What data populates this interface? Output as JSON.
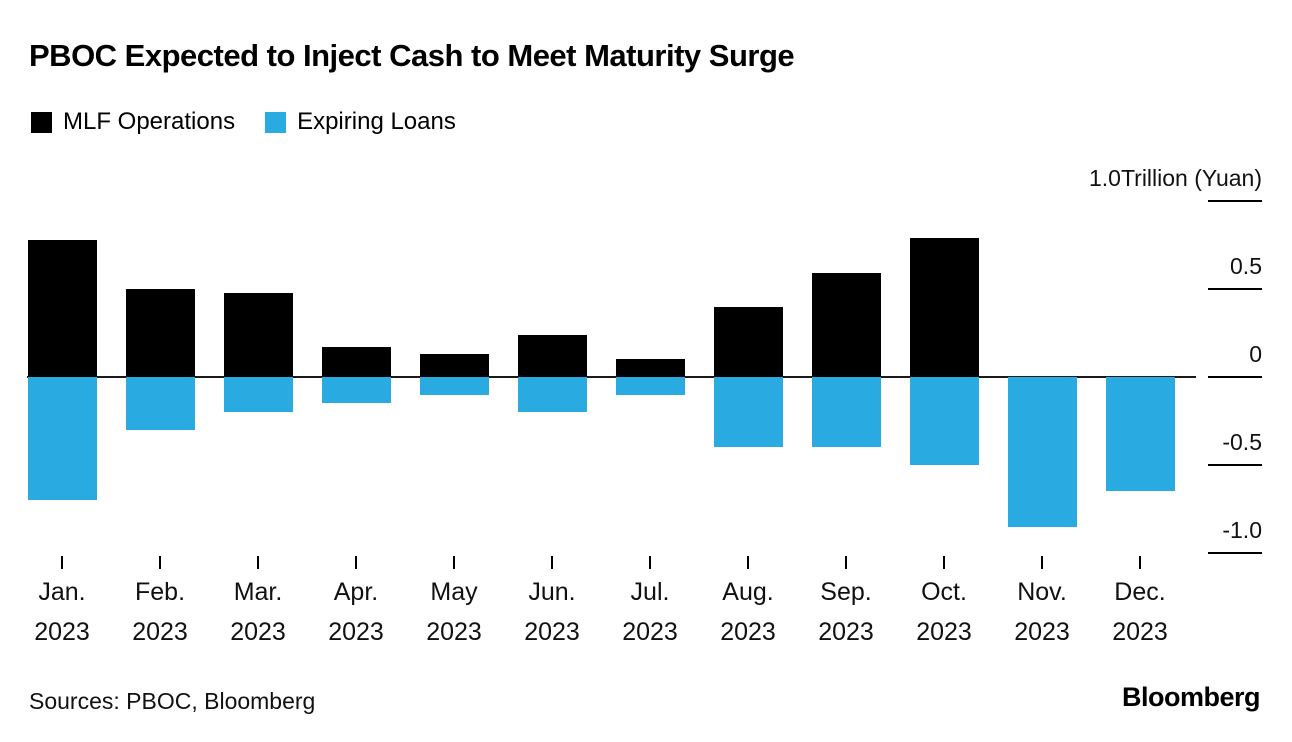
{
  "title": "PBOC Expected to Inject Cash to Meet Maturity Surge",
  "legend": {
    "items": [
      {
        "label": "MLF Operations",
        "color": "#000000"
      },
      {
        "label": "Expiring Loans",
        "color": "#29ABE2"
      }
    ]
  },
  "footer": {
    "sources": "Sources: PBOC, Bloomberg",
    "brand": "Bloomberg"
  },
  "chart_data": {
    "type": "bar",
    "title": "PBOC Expected to Inject Cash to Meet Maturity Surge",
    "categories": [
      "Jan.",
      "Feb.",
      "Mar.",
      "Apr.",
      "May",
      "Jun.",
      "Jul.",
      "Aug.",
      "Sep.",
      "Oct.",
      "Nov.",
      "Dec."
    ],
    "category_year": "2023",
    "series": [
      {
        "name": "MLF Operations",
        "color": "#000000",
        "values": [
          0.78,
          0.5,
          0.48,
          0.17,
          0.13,
          0.24,
          0.1,
          0.4,
          0.59,
          0.79,
          0,
          0
        ]
      },
      {
        "name": "Expiring Loans",
        "color": "#29ABE2",
        "values": [
          -0.7,
          -0.3,
          -0.2,
          -0.15,
          -0.1,
          -0.2,
          -0.1,
          -0.4,
          -0.4,
          -0.5,
          -0.85,
          -0.65
        ]
      }
    ],
    "y_axis": {
      "unit_label": "1.0Trillion (Yuan)",
      "ticks": [
        {
          "value": 1.0,
          "label": "1.0Trillion (Yuan)"
        },
        {
          "value": 0.5,
          "label": "0.5"
        },
        {
          "value": 0,
          "label": "0"
        },
        {
          "value": -0.5,
          "label": "-0.5"
        },
        {
          "value": -1.0,
          "label": "-1.0"
        }
      ],
      "range": [
        -1.1,
        1.1
      ]
    },
    "grid": "right-side tick dashes only",
    "legend_position": "top-left",
    "source": "Sources: PBOC, Bloomberg"
  }
}
